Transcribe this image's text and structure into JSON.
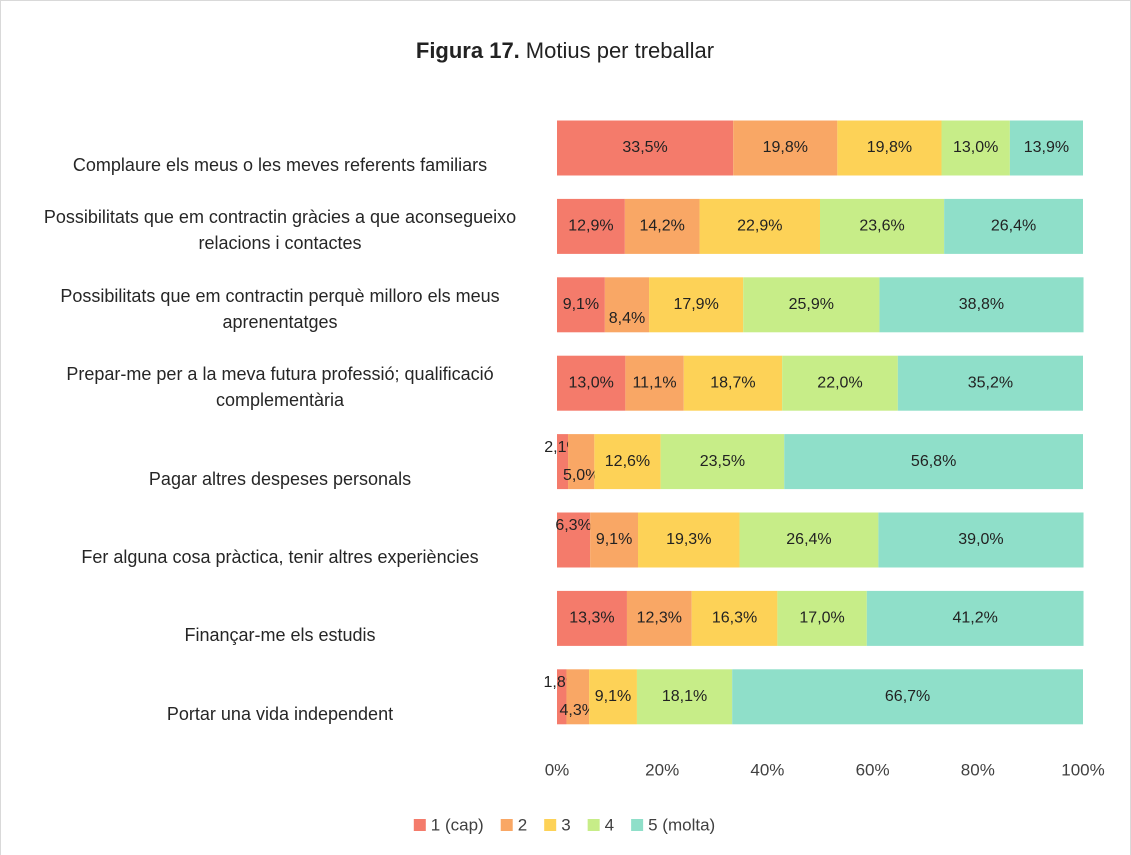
{
  "chart_data": {
    "type": "stacked-barh",
    "title_prefix": "Figura 17.",
    "title": "Motius per treballar",
    "categories": [
      "Complaure els meus o les meves referents familiars",
      "Possibilitats que em contractin gràcies a que aconsegueixo relacions i contactes",
      "Possibilitats que em contractin perquè milloro els meus aprenentatges",
      "Prepar-me per a la meva futura professió; qualificació complementària",
      "Pagar altres despeses personals",
      "Fer alguna cosa pràctica, tenir altres experiències",
      "Finançar-me els estudis",
      "Portar una vida independent"
    ],
    "series": [
      {
        "name": "1 (cap)",
        "color": "#f47b6b",
        "values": [
          33.5,
          12.9,
          9.1,
          13.0,
          2.1,
          6.3,
          13.3,
          1.8
        ],
        "value_labels": [
          "33,5%",
          "12,9%",
          "9,1%",
          "13,0%",
          "2,1%",
          "6,3%",
          "13,3%",
          "1,8%"
        ]
      },
      {
        "name": "2",
        "color": "#f9a765",
        "values": [
          19.8,
          14.2,
          8.4,
          11.1,
          5.0,
          9.1,
          12.3,
          4.3
        ],
        "value_labels": [
          "19,8%",
          "14,2%",
          "8,4%",
          "11,1%",
          "5,0%",
          "9,1%",
          "12,3%",
          "4,3%"
        ]
      },
      {
        "name": "3",
        "color": "#fdd257",
        "values": [
          19.8,
          22.9,
          17.9,
          18.7,
          12.6,
          19.3,
          16.3,
          9.1
        ],
        "value_labels": [
          "19,8%",
          "22,9%",
          "17,9%",
          "18,7%",
          "12,6%",
          "19,3%",
          "16,3%",
          "9,1%"
        ]
      },
      {
        "name": "4",
        "color": "#c7ed88",
        "values": [
          13.0,
          23.6,
          25.9,
          22.0,
          23.5,
          26.4,
          17.0,
          18.1
        ],
        "value_labels": [
          "13,0%",
          "23,6%",
          "25,9%",
          "22,0%",
          "23,5%",
          "26,4%",
          "17,0%",
          "18,1%"
        ]
      },
      {
        "name": "5 (molta)",
        "color": "#8fdfc9",
        "values": [
          13.9,
          26.4,
          38.8,
          35.2,
          56.8,
          39.0,
          41.2,
          66.7
        ],
        "value_labels": [
          "13,9%",
          "26,4%",
          "38,8%",
          "35,2%",
          "56,8%",
          "39,0%",
          "41,2%",
          "66,7%"
        ]
      }
    ],
    "xlim": [
      0,
      100
    ],
    "xticks": [
      {
        "value": 0,
        "label": "0%"
      },
      {
        "value": 20,
        "label": "20%"
      },
      {
        "value": 40,
        "label": "40%"
      },
      {
        "value": 60,
        "label": "60%"
      },
      {
        "value": 80,
        "label": "80%"
      },
      {
        "value": 100,
        "label": "100%"
      }
    ],
    "legend": "bottom"
  }
}
